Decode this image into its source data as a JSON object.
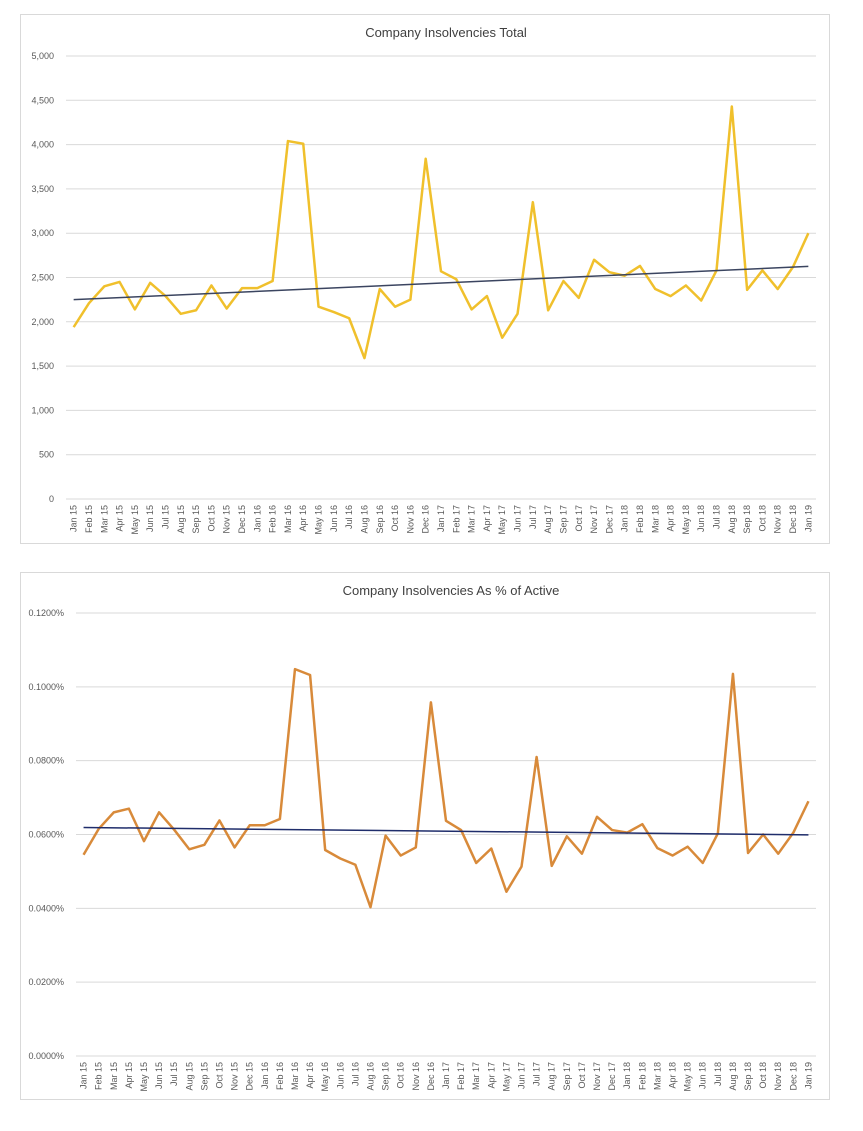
{
  "charts": [
    {
      "type": "line",
      "title": "Company Insolvencies Total",
      "categories": [
        "Jan 15",
        "Feb 15",
        "Mar 15",
        "Apr 15",
        "May 15",
        "Jun 15",
        "Jul 15",
        "Aug 15",
        "Sep 15",
        "Oct 15",
        "Nov 15",
        "Dec 15",
        "Jan 16",
        "Feb 16",
        "Mar 16",
        "Apr 16",
        "May 16",
        "Jun 16",
        "Jul 16",
        "Aug 16",
        "Sep 16",
        "Oct 16",
        "Nov 16",
        "Dec 16",
        "Jan 17",
        "Feb 17",
        "Mar 17",
        "Apr 17",
        "May 17",
        "Jun 17",
        "Jul 17",
        "Aug 17",
        "Sep 17",
        "Oct 17",
        "Nov 17",
        "Dec 17",
        "Jan 18",
        "Feb 18",
        "Mar 18",
        "Apr 18",
        "May 18",
        "Jun 18",
        "Jul 18",
        "Aug 18",
        "Sep 18",
        "Oct 18",
        "Nov 18",
        "Dec 18",
        "Jan 19"
      ],
      "values": [
        1940,
        2210,
        2400,
        2450,
        2140,
        2440,
        2290,
        2090,
        2130,
        2410,
        2150,
        2380,
        2380,
        2460,
        4040,
        4010,
        2170,
        2110,
        2040,
        1590,
        2370,
        2170,
        2250,
        3840,
        2570,
        2480,
        2140,
        2290,
        1820,
        2090,
        3350,
        2130,
        2460,
        2270,
        2700,
        2560,
        2520,
        2630,
        2370,
        2290,
        2410,
        2240,
        2580,
        4430,
        2360,
        2580,
        2370,
        2620,
        3000
      ],
      "ylim": [
        0,
        5000
      ],
      "yticks": [
        0,
        500,
        1000,
        1500,
        2000,
        2500,
        3000,
        3500,
        4000,
        4500,
        5000
      ],
      "ytick_labels": [
        "0",
        "500",
        "1,000",
        "1,500",
        "2,000",
        "2,500",
        "3,000",
        "3,500",
        "4,000",
        "4,500",
        "5,000"
      ],
      "trendline": {
        "start": 2250,
        "end": 2625
      },
      "colors": {
        "series": "#f0c02c",
        "trend": "#3b4560",
        "grid": "#d9d9d9"
      }
    },
    {
      "type": "line",
      "title": "Company Insolvencies As % of Active",
      "categories": [
        "Jan 15",
        "Feb 15",
        "Mar 15",
        "Apr 15",
        "May 15",
        "Jun 15",
        "Jul 15",
        "Aug 15",
        "Sep 15",
        "Oct 15",
        "Nov 15",
        "Dec 15",
        "Jan 16",
        "Feb 16",
        "Mar 16",
        "Apr 16",
        "May 16",
        "Jun 16",
        "Jul 16",
        "Aug 16",
        "Sep 16",
        "Oct 16",
        "Nov 16",
        "Dec 16",
        "Jan 17",
        "Feb 17",
        "Mar 17",
        "Apr 17",
        "May 17",
        "Jun 17",
        "Jul 17",
        "Aug 17",
        "Sep 17",
        "Oct 17",
        "Nov 17",
        "Dec 17",
        "Jan 18",
        "Feb 18",
        "Mar 18",
        "Apr 18",
        "May 18",
        "Jun 18",
        "Jul 18",
        "Aug 18",
        "Sep 18",
        "Oct 18",
        "Nov 18",
        "Dec 18",
        "Jan 19"
      ],
      "values": [
        0.0545,
        0.0615,
        0.066,
        0.067,
        0.0582,
        0.066,
        0.0613,
        0.056,
        0.0572,
        0.0638,
        0.0565,
        0.0625,
        0.0625,
        0.0642,
        0.1048,
        0.1032,
        0.0558,
        0.0535,
        0.0518,
        0.0403,
        0.0597,
        0.0543,
        0.0565,
        0.0958,
        0.0637,
        0.0612,
        0.0523,
        0.0562,
        0.0445,
        0.0513,
        0.081,
        0.0515,
        0.0595,
        0.0548,
        0.0648,
        0.0612,
        0.0605,
        0.0628,
        0.0563,
        0.0543,
        0.0567,
        0.0523,
        0.0603,
        0.1035,
        0.055,
        0.06,
        0.0548,
        0.0605,
        0.069
      ],
      "ylim": [
        0,
        0.12
      ],
      "yticks": [
        0,
        0.02,
        0.04,
        0.06,
        0.08,
        0.1,
        0.12
      ],
      "ytick_labels": [
        "0.0000%",
        "0.0200%",
        "0.0400%",
        "0.0600%",
        "0.0800%",
        "0.1000%",
        "0.1200%"
      ],
      "trendline": {
        "start": 0.0619,
        "end": 0.0599
      },
      "colors": {
        "series": "#d88a3a",
        "trend": "#1f2d6b",
        "grid": "#d9d9d9"
      }
    }
  ]
}
